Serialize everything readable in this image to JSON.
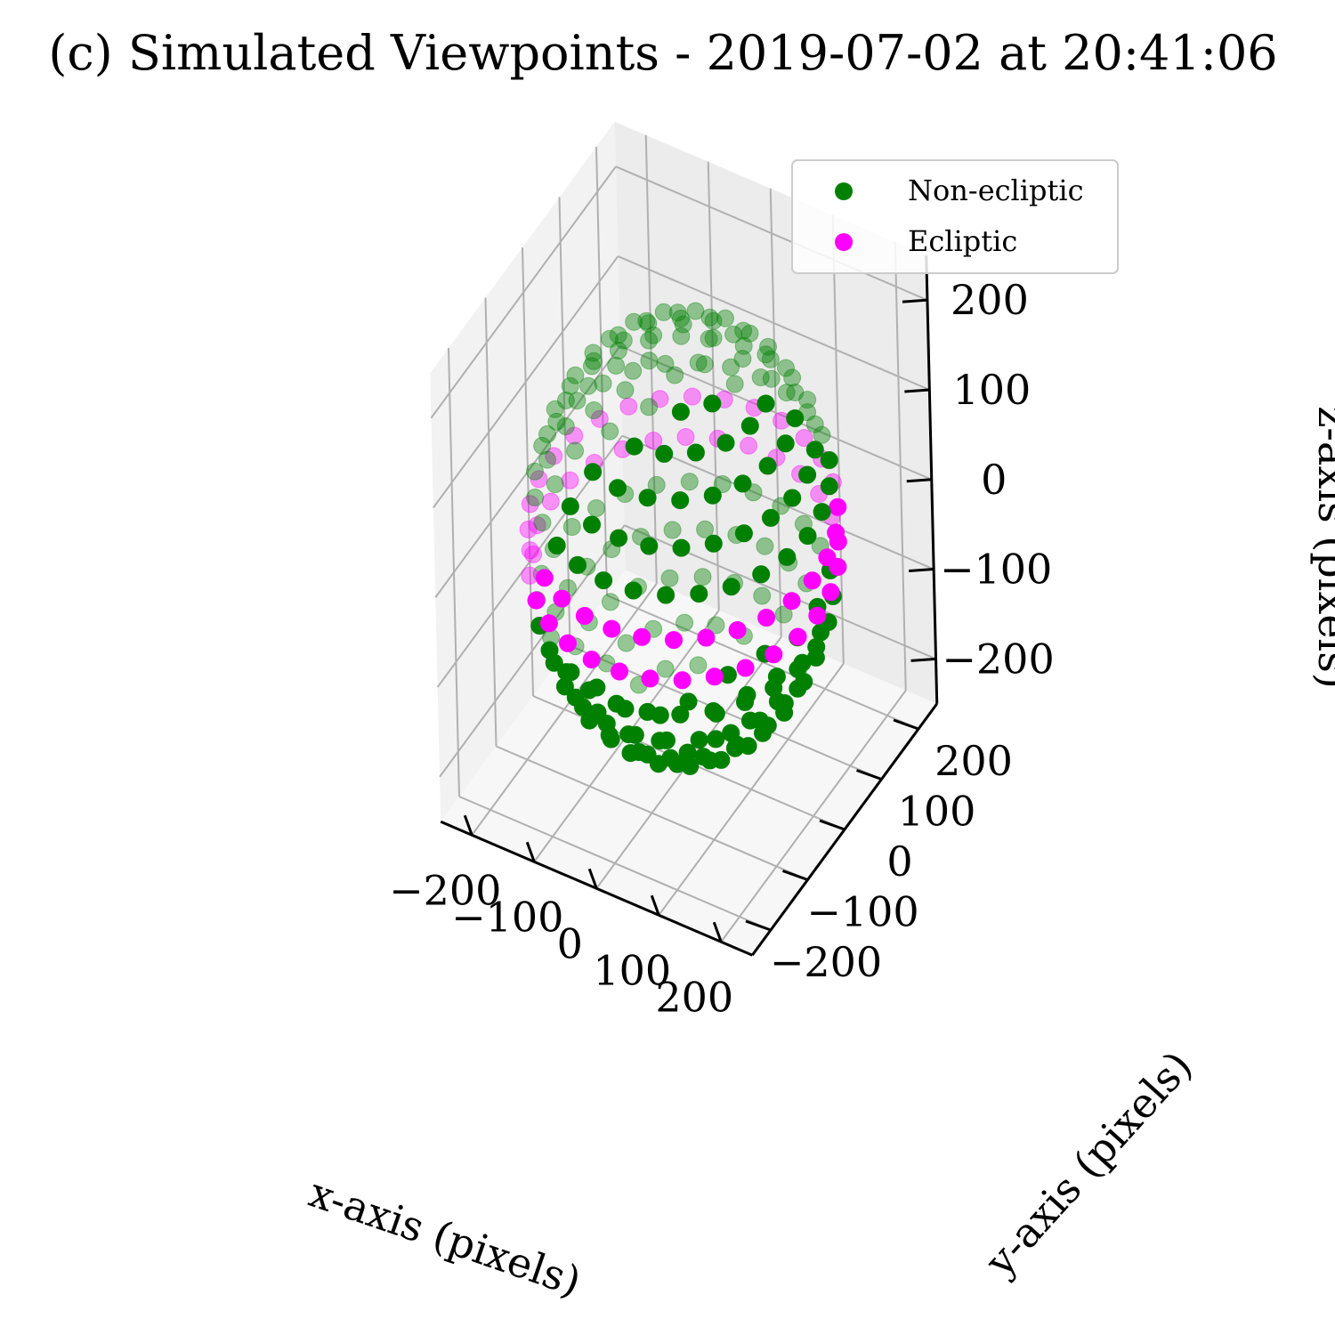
{
  "chart_data": {
    "type": "scatter",
    "title": "(c) Simulated Viewpoints - 2019-07-02 at 20:41:06",
    "xlabel": "x-axis (pixels)",
    "ylabel": "y-axis (pixels)",
    "zlabel": "z-axis (pixels)",
    "xlim": [
      -250,
      250
    ],
    "ylim": [
      -250,
      250
    ],
    "zlim": [
      -250,
      250
    ],
    "x_ticks": [
      "−200",
      "−100",
      "0",
      "100",
      "200"
    ],
    "y_ticks": [
      "−200",
      "−100",
      "0",
      "100",
      "200"
    ],
    "z_ticks": [
      "−200",
      "−100",
      "0",
      "100",
      "200"
    ],
    "tick_values": [
      -200,
      -100,
      0,
      100,
      200
    ],
    "grid": true,
    "projection": "3d",
    "legend_position": "top-right",
    "sphere_radius": 215,
    "series": [
      {
        "name": "Non-ecliptic",
        "color": "#008000",
        "lat_bands": [
          -78,
          -66,
          -54,
          -42,
          -30,
          -18,
          18,
          30,
          42,
          54,
          66,
          78
        ],
        "points_per_band": [
          6,
          12,
          18,
          22,
          26,
          28,
          28,
          26,
          22,
          18,
          12,
          6
        ]
      },
      {
        "name": "Ecliptic",
        "color": "#ff00ff",
        "lat_bands": [
          -6,
          6
        ],
        "points_per_band": [
          30,
          30
        ]
      }
    ]
  },
  "legend": {
    "items": [
      {
        "label": "Non-ecliptic",
        "color": "#008000"
      },
      {
        "label": "Ecliptic",
        "color": "#ff00ff"
      }
    ]
  }
}
